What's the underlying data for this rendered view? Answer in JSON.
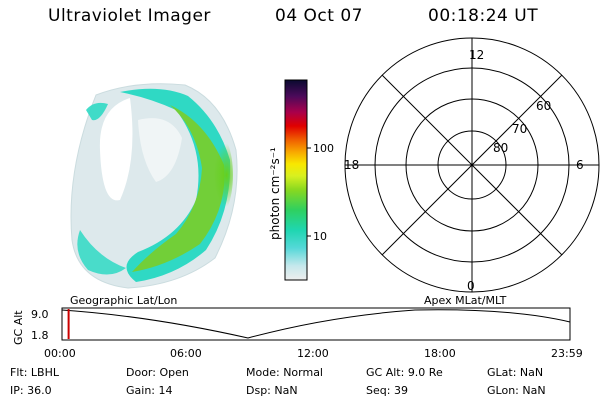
{
  "header": {
    "title": "Ultraviolet Imager",
    "date": "04 Oct 07",
    "time": "00:18:24 UT"
  },
  "colorbar": {
    "label": "photon cm⁻²s⁻¹",
    "ticks": [
      "100",
      "10"
    ]
  },
  "polar": {
    "mlt_labels": {
      "top": "12",
      "left": "18",
      "right": "6",
      "bottom": "0"
    },
    "lat_labels": [
      "60",
      "70",
      "80"
    ]
  },
  "projections": {
    "left": "Geographic Lat/Lon",
    "right": "Apex MLat/MLT"
  },
  "timeline": {
    "axis_label": "GC Alt",
    "y_ticks": [
      "9.0",
      "1.8"
    ],
    "x_ticks": [
      "00:00",
      "06:00",
      "12:00",
      "18:00",
      "23:59"
    ],
    "current_marker_fraction": 0.013,
    "marker_color": "#cc0000"
  },
  "status": {
    "filter": {
      "label": "Flt:",
      "value": "LBHL"
    },
    "ip": {
      "label": "IP:",
      "value": "36.0"
    },
    "door": {
      "label": "Door:",
      "value": "Open"
    },
    "gain": {
      "label": "Gain:",
      "value": "14"
    },
    "mode": {
      "label": "Mode:",
      "value": "Normal"
    },
    "dsp": {
      "label": "Dsp:",
      "value": "NaN"
    },
    "gc_alt": {
      "label": "GC Alt:",
      "value": "9.0 Re"
    },
    "seq": {
      "label": "Seq:",
      "value": "39"
    },
    "glat": {
      "label": "GLat:",
      "value": "NaN"
    },
    "glon": {
      "label": "GLon:",
      "value": "NaN"
    }
  }
}
